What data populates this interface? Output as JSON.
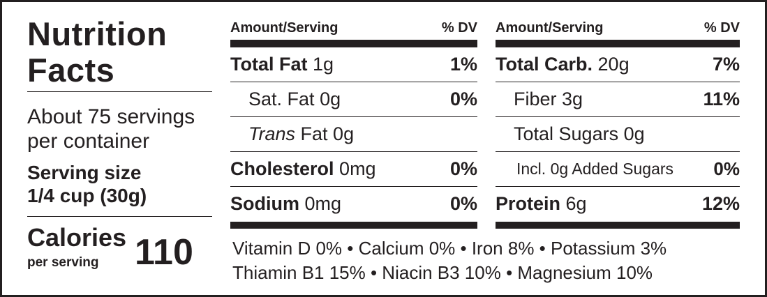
{
  "title_line1": "Nutrition",
  "title_line2": "Facts",
  "servings_line1": "About 75 servings",
  "servings_line2": "per container",
  "serving_size_label": "Serving size",
  "serving_size_value": "1/4 cup (30g)",
  "calories_label": "Calories",
  "calories_sub": "per serving",
  "calories_value": "110",
  "left_table": {
    "header_amount": "Amount/Serving",
    "header_dv": "% DV",
    "rows": [
      {
        "name": "Total Fat",
        "amount": "1g",
        "dv": "1%"
      },
      {
        "name": "Sat. Fat",
        "amount": "0g",
        "dv": "0%"
      },
      {
        "name_italic": "Trans",
        "name": "Fat",
        "amount": "0g",
        "dv": ""
      },
      {
        "name": "Cholesterol",
        "amount": "0mg",
        "dv": "0%"
      },
      {
        "name": "Sodium",
        "amount": "0mg",
        "dv": "0%"
      }
    ]
  },
  "right_table": {
    "header_amount": "Amount/Serving",
    "header_dv": "% DV",
    "rows": [
      {
        "name": "Total Carb.",
        "amount": "20g",
        "dv": "7%"
      },
      {
        "name": "Fiber",
        "amount": "3g",
        "dv": "11%"
      },
      {
        "name": "Total Sugars",
        "amount": "0g",
        "dv": ""
      },
      {
        "name": "Incl. 0g Added Sugars",
        "amount": "",
        "dv": "0%"
      },
      {
        "name": "Protein",
        "amount": "6g",
        "dv": "12%"
      }
    ]
  },
  "vitamins_line1": "Vitamin D 0%  •  Calcium 0%  •  Iron 8%  •  Potassium 3%",
  "vitamins_line2": "Thiamin B1 15%  •  Niacin B3 10%  •  Magnesium 10%"
}
